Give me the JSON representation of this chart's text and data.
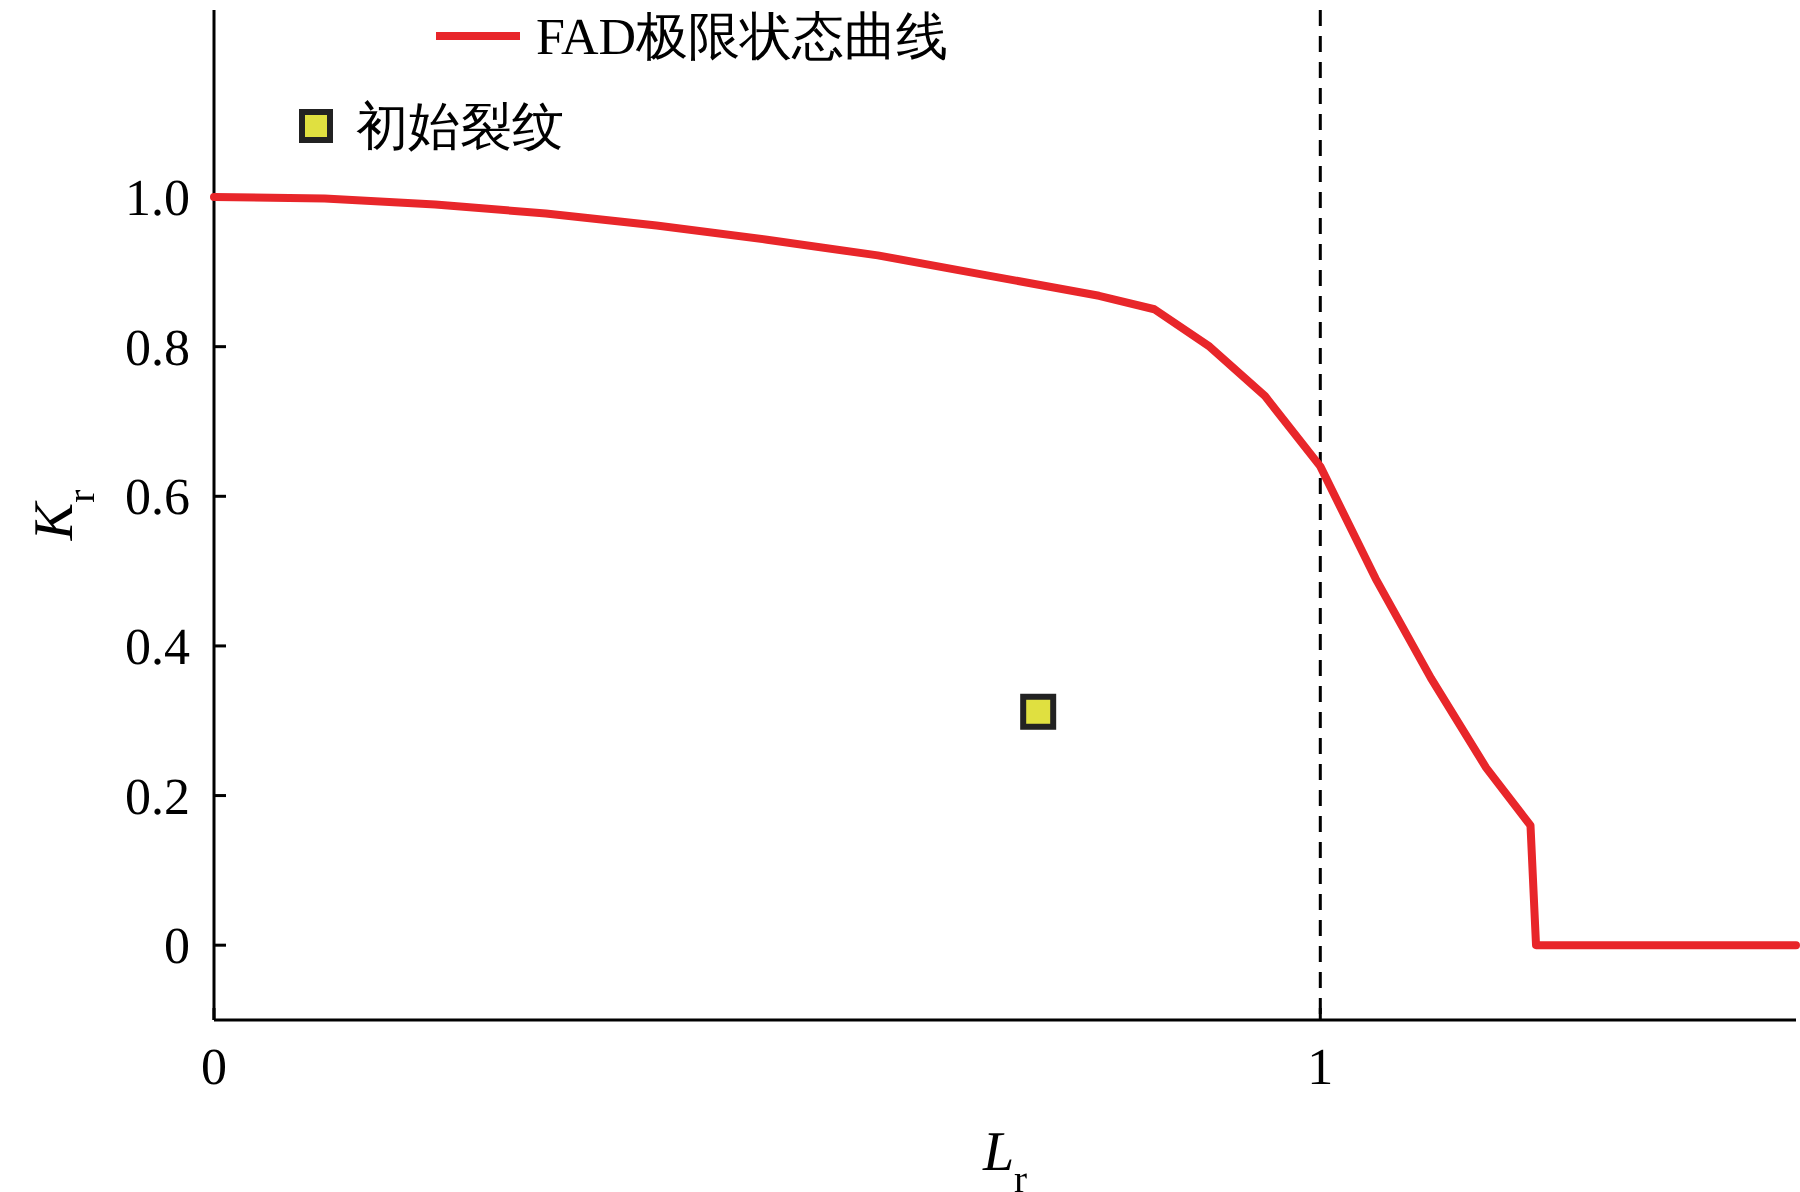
{
  "chart_data": {
    "type": "line",
    "xlabel": "L$_{r}$",
    "ylabel": "K$_{r}$",
    "xlim": [
      0,
      1.43
    ],
    "ylim": [
      -0.1,
      1.25
    ],
    "xticks": [
      0,
      1
    ],
    "yticks": [
      0,
      0.2,
      0.4,
      0.6,
      0.8,
      {
        "value": 1,
        "label": "1.0"
      }
    ],
    "grid": false,
    "legend": "top left",
    "line_style": "solid",
    "marker": "none",
    "series": [
      {
        "name": "FAD极限状态曲线",
        "color": "#e8262a",
        "x": [
          0,
          0.1,
          0.2,
          0.3,
          0.4,
          0.5,
          0.6,
          0.7,
          0.8,
          0.85,
          0.9,
          0.95,
          1.0,
          1.05,
          1.1,
          1.15,
          1.19,
          1.195,
          1.43
        ],
        "values": [
          1.0,
          0.998,
          0.99,
          0.978,
          0.962,
          0.943,
          0.922,
          0.895,
          0.868,
          0.85,
          0.8,
          0.734,
          0.64,
          0.49,
          0.357,
          0.237,
          0.16,
          0.0,
          0.0
        ]
      },
      {
        "name": "初始裂纹",
        "type": "scatter",
        "marker": "square",
        "color": "#e0e040",
        "x": [
          0.745
        ],
        "values": [
          0.312
        ]
      }
    ],
    "ref_lines": [
      {
        "axis": "x",
        "value": 1,
        "line_style": "dashed",
        "color": "#000000"
      }
    ]
  }
}
